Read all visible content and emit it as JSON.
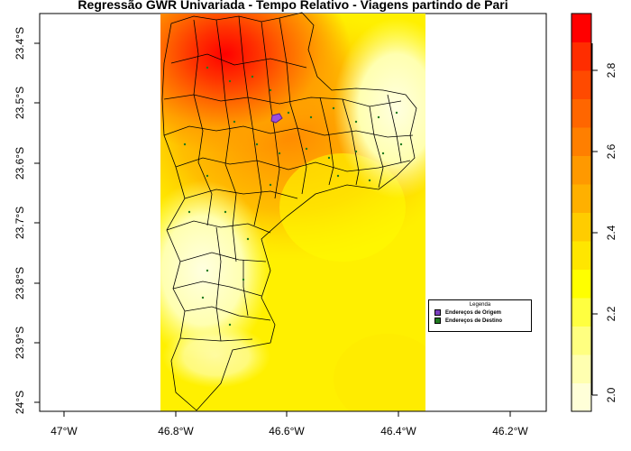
{
  "title": "Regressão GWR Univariada - Tempo Relativo - Viagens partindo de Pari",
  "map": {
    "x_ticks": [
      "47°W",
      "46.8°W",
      "46.6°W",
      "46.4°W",
      "46.2°W"
    ],
    "y_ticks": [
      "23.4°S",
      "23.5°S",
      "23.6°S",
      "23.7°S",
      "23.8°S",
      "23.9°S",
      "24°S"
    ]
  },
  "colorbar": {
    "ticks": [
      "2.0",
      "2.2",
      "2.4",
      "2.6",
      "2.8"
    ],
    "colors": [
      "#FFFFD8",
      "#FFFFB0",
      "#FFFF80",
      "#FFFF40",
      "#FFFF00",
      "#FFE600",
      "#FFCC00",
      "#FFB000",
      "#FF9900",
      "#FF7F00",
      "#FF6600",
      "#FF4A00",
      "#FF2D00",
      "#FF0000"
    ]
  },
  "legend": {
    "title": "Legenda",
    "items": [
      {
        "label": "Endereços de Origem",
        "color": "#7B3FBF"
      },
      {
        "label": "Endereços de Destino",
        "color": "#1F7A1F"
      }
    ]
  }
}
